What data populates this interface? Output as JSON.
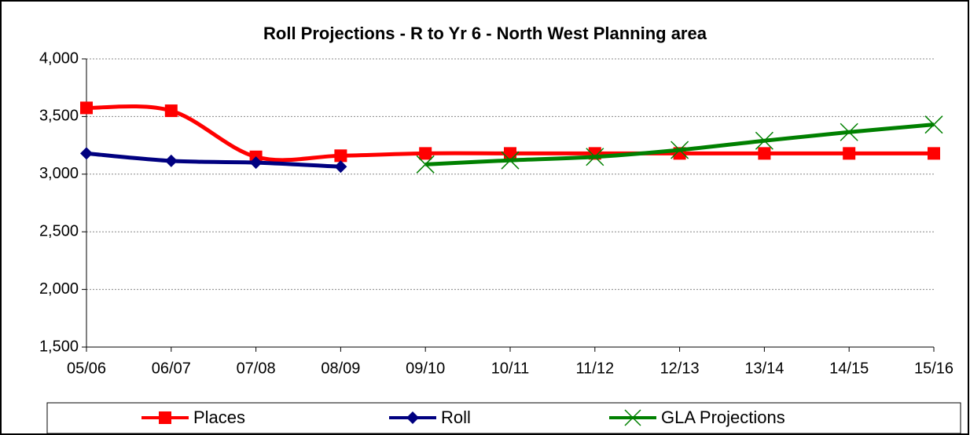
{
  "chart_data": {
    "type": "line",
    "title": "Roll Projections - R to Yr 6 - North West Planning area",
    "categories": [
      "05/06",
      "06/07",
      "07/08",
      "08/09",
      "09/10",
      "10/11",
      "11/12",
      "12/13",
      "13/14",
      "14/15",
      "15/16"
    ],
    "series": [
      {
        "name": "Places",
        "color": "#ff0000",
        "marker": "square",
        "values": [
          3575,
          3550,
          3150,
          3160,
          3180,
          3180,
          3180,
          3180,
          3180,
          3180,
          3180
        ]
      },
      {
        "name": "Roll",
        "color": "#000080",
        "marker": "diamond",
        "values": [
          3180,
          3115,
          3100,
          3065,
          null,
          null,
          null,
          null,
          null,
          null,
          null
        ]
      },
      {
        "name": "GLA Projections",
        "color": "#008000",
        "marker": "x",
        "values": [
          null,
          null,
          null,
          null,
          3085,
          3120,
          3150,
          3210,
          3290,
          3365,
          3430
        ]
      }
    ],
    "ylim": [
      1500,
      4000
    ],
    "yticks": [
      {
        "value": 1500,
        "label": "1,500"
      },
      {
        "value": 2000,
        "label": "2,000"
      },
      {
        "value": 2500,
        "label": "2,500"
      },
      {
        "value": 3000,
        "label": "3,000"
      },
      {
        "value": 3500,
        "label": "3,500"
      },
      {
        "value": 4000,
        "label": "4,000"
      }
    ],
    "grid": true,
    "smooth": true,
    "legend": "bottom"
  }
}
